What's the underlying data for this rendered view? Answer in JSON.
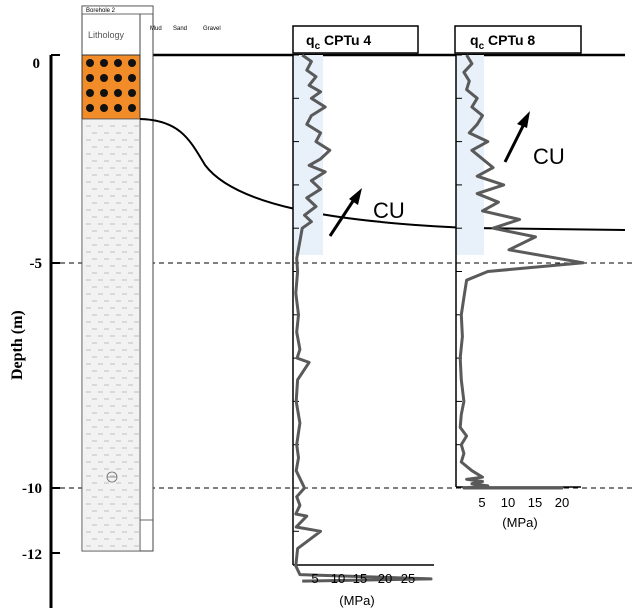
{
  "depth_axis": {
    "label": "Depth (m)",
    "ticks": [
      "0",
      "-5",
      "-10",
      "-12"
    ]
  },
  "borehole": {
    "name": "Borehole 2",
    "column_label": "Lithology",
    "grain_size_labels": [
      "Mud",
      "Sand",
      "Gravel"
    ],
    "gravel_color": "#f28c28",
    "sand_color": "#f2f2f2"
  },
  "panels": [
    {
      "title_q": "q",
      "title_sub": "c",
      "title_rest": " CPTu 4",
      "x_ticks": [
        "5",
        "10",
        "15",
        "20",
        "25"
      ],
      "unit": "(MPa)",
      "annotation": "CU"
    },
    {
      "title_q": "q",
      "title_sub": "c",
      "title_rest": " CPTu 8",
      "x_ticks": [
        "5",
        "10",
        "15",
        "20"
      ],
      "unit": "(MPa)",
      "annotation": "CU"
    }
  ],
  "colors": {
    "trace": "#5a5a5a",
    "shade": "#e8f1fa",
    "line": "#000000"
  },
  "chart_data": [
    {
      "type": "line",
      "name": "qc CPTu 4",
      "xlabel": "(MPa)",
      "ylabel": "Depth (m)",
      "xlim": [
        0,
        30
      ],
      "ylim": [
        -12.2,
        0
      ],
      "x": [
        2,
        4,
        3,
        5,
        3.5,
        6,
        4,
        7,
        4,
        3,
        6,
        5,
        8,
        6,
        3.5,
        7,
        4,
        6,
        3,
        5,
        2.5,
        4,
        2,
        1.5,
        0.8,
        1,
        0.6,
        1.2,
        0.8,
        1.5,
        0.9,
        3.5,
        1,
        0.7,
        1.5,
        0.8,
        1.2,
        0.7,
        2.5,
        0.8,
        1.5,
        0.6,
        3,
        0.7,
        6,
        1,
        0.6,
        1.5,
        30,
        2
      ],
      "y": [
        0,
        -0.15,
        -0.35,
        -0.5,
        -0.7,
        -0.85,
        -1.0,
        -1.2,
        -1.4,
        -1.6,
        -1.8,
        -2.0,
        -2.2,
        -2.4,
        -2.55,
        -2.7,
        -2.9,
        -3.1,
        -3.3,
        -3.5,
        -3.7,
        -3.85,
        -4.0,
        -4.3,
        -4.7,
        -5.0,
        -5.5,
        -6.0,
        -6.4,
        -6.8,
        -7.0,
        -7.1,
        -7.5,
        -8.0,
        -8.5,
        -9.0,
        -9.3,
        -9.6,
        -10.0,
        -10.2,
        -10.4,
        -10.6,
        -10.65,
        -10.9,
        -11.0,
        -11.4,
        -11.8,
        -12.0,
        -12.1,
        -12.15
      ]
    },
    {
      "type": "line",
      "name": "qc CPTu 8",
      "xlabel": "(MPa)",
      "ylabel": "Depth (m)",
      "xlim": [
        0,
        25
      ],
      "ylim": [
        -10,
        0
      ],
      "x": [
        2,
        3,
        1.5,
        2.5,
        2,
        4,
        3,
        5,
        4,
        2.5,
        6,
        3,
        5,
        7,
        4,
        9,
        4,
        8,
        5,
        12,
        7,
        15,
        10,
        24,
        6,
        2,
        1.5,
        1,
        1.2,
        0.8,
        1,
        1.5,
        1,
        0.8,
        2,
        1,
        1.5,
        1,
        3,
        5,
        2,
        5,
        3,
        6,
        1.5,
        15,
        20,
        2
      ],
      "y": [
        0,
        -0.2,
        -0.4,
        -0.6,
        -0.8,
        -1.0,
        -1.2,
        -1.4,
        -1.6,
        -1.8,
        -2.0,
        -2.2,
        -2.4,
        -2.6,
        -2.8,
        -3.0,
        -3.2,
        -3.4,
        -3.6,
        -3.8,
        -4.0,
        -4.2,
        -4.5,
        -4.8,
        -5.0,
        -5.2,
        -5.6,
        -6.0,
        -6.5,
        -7.0,
        -7.5,
        -8.0,
        -8.3,
        -8.6,
        -8.8,
        -9.0,
        -9.2,
        -9.4,
        -9.6,
        -9.75,
        -9.8,
        -9.85,
        -9.9,
        -9.95,
        -10.0,
        -10.0,
        -10.0,
        -10.0
      ]
    }
  ]
}
